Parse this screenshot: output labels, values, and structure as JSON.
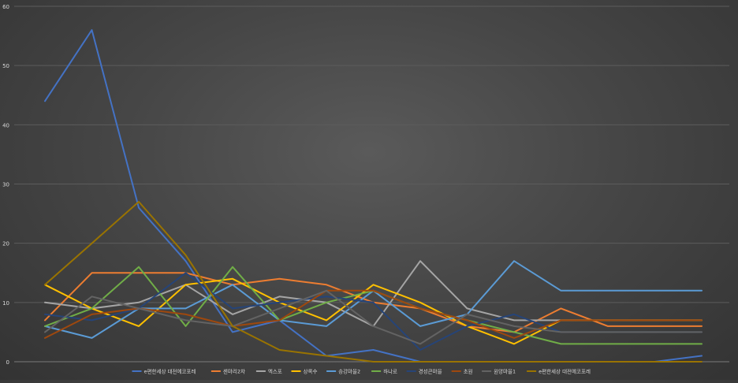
{
  "chart_data": {
    "type": "line",
    "title": "",
    "xlabel": "",
    "ylabel": "",
    "ylim": [
      0,
      60
    ],
    "yticks": [
      0,
      10,
      20,
      30,
      40,
      50,
      60
    ],
    "x": [
      1,
      2,
      3,
      4,
      5,
      6,
      7,
      8,
      9,
      10,
      11,
      12,
      13,
      14,
      15
    ],
    "grid": true,
    "legend_position": "bottom",
    "series": [
      {
        "name": "e편한세상 대전에코포레",
        "color": "#4472C4",
        "values": [
          44,
          56,
          26,
          17,
          5,
          7,
          1,
          2,
          0,
          0,
          0,
          0,
          0,
          0,
          1
        ]
      },
      {
        "name": "센마리2차",
        "color": "#ED7D31",
        "values": [
          7,
          15,
          15,
          15,
          13,
          14,
          13,
          10,
          9,
          6,
          5,
          9,
          6,
          6,
          6
        ]
      },
      {
        "name": "엑스포",
        "color": "#A5A5A5",
        "values": [
          10,
          9,
          10,
          13,
          8,
          11,
          10,
          6,
          17,
          9,
          7,
          7,
          7,
          7,
          7
        ]
      },
      {
        "name": "상록수",
        "color": "#FFC000",
        "values": [
          13,
          9,
          6,
          13,
          14,
          10,
          7,
          13,
          10,
          6,
          3,
          7,
          7,
          7,
          7
        ]
      },
      {
        "name": "송강마을2",
        "color": "#5B9BD5",
        "values": [
          6,
          4,
          9,
          9,
          13,
          7,
          6,
          12,
          6,
          8,
          17,
          12,
          12,
          12,
          12
        ]
      },
      {
        "name": "하나로",
        "color": "#70AD47",
        "values": [
          6,
          9,
          16,
          6,
          16,
          7,
          10,
          12,
          9,
          7,
          5,
          3,
          3,
          3,
          3
        ]
      },
      {
        "name": "경성큰마을",
        "color": "#264478",
        "values": [
          8,
          7,
          9,
          15,
          9,
          10,
          11,
          10,
          2,
          6,
          8,
          5,
          5,
          5,
          5
        ]
      },
      {
        "name": "초원",
        "color": "#9E480E",
        "values": [
          4,
          8,
          9,
          8,
          6,
          7,
          12,
          12,
          9,
          7,
          4,
          7,
          7,
          7,
          7
        ]
      },
      {
        "name": "원앙마을1",
        "color": "#636363",
        "values": [
          5,
          11,
          9,
          7,
          6,
          9,
          12,
          6,
          3,
          8,
          6,
          5,
          5,
          5,
          5
        ]
      },
      {
        "name": "e편한세상 대전에코포레",
        "color": "#997300",
        "values": [
          13,
          20,
          27,
          18,
          6,
          2,
          1,
          0,
          0,
          0,
          0,
          0,
          0,
          0,
          0
        ]
      }
    ]
  }
}
